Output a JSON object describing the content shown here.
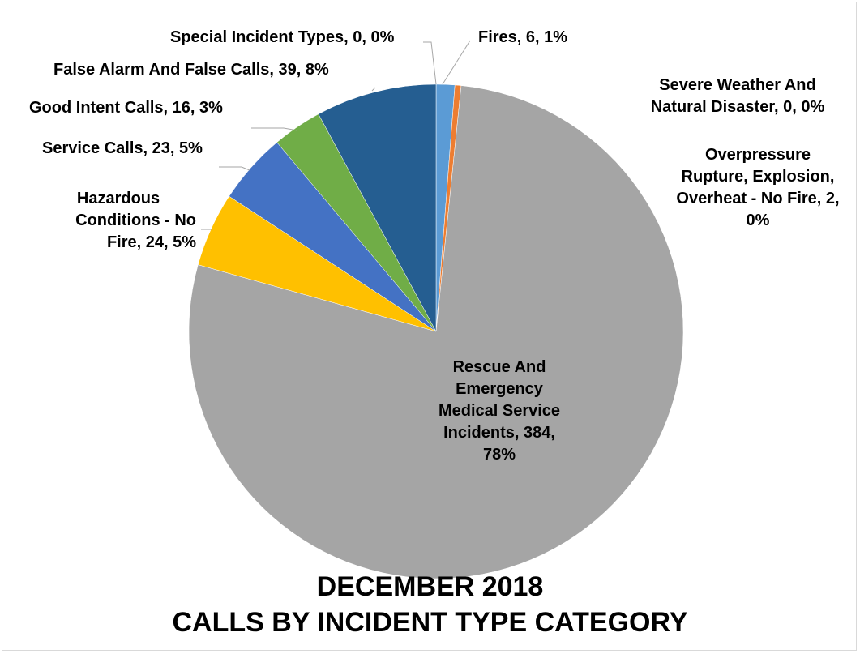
{
  "chart_data": {
    "type": "pie",
    "title_line1": "DECEMBER 2018",
    "title_line2": "CALLS BY INCIDENT TYPE CATEGORY",
    "start_angle_deg": 0,
    "direction": "clockwise",
    "slices": [
      {
        "name": "Fires",
        "value": 6,
        "percent": "1%",
        "color": "#5b9bd5"
      },
      {
        "name": "Overpressure Rupture, Explosion, Overheat - No Fire",
        "value": 2,
        "percent": "0%",
        "color": "#ed7d31"
      },
      {
        "name": "Rescue And Emergency Medical Service Incidents",
        "value": 384,
        "percent": "78%",
        "color": "#a5a5a5"
      },
      {
        "name": "Hazardous Conditions - No Fire",
        "value": 24,
        "percent": "5%",
        "color": "#ffc000"
      },
      {
        "name": "Service Calls",
        "value": 23,
        "percent": "5%",
        "color": "#4472c4"
      },
      {
        "name": "Good Intent Calls",
        "value": 16,
        "percent": "3%",
        "color": "#70ad47"
      },
      {
        "name": "False Alarm And False Calls",
        "value": 39,
        "percent": "8%",
        "color": "#255e91"
      },
      {
        "name": "Severe Weather And Natural Disaster",
        "value": 0,
        "percent": "0%",
        "color": "#9e480e"
      },
      {
        "name": "Special Incident Types",
        "value": 0,
        "percent": "0%",
        "color": "#636363"
      }
    ],
    "labels": {
      "fires": "Fires, 6, 1%",
      "severe": [
        "Severe Weather And",
        "Natural Disaster, 0, 0%"
      ],
      "overpressure": [
        "Overpressure",
        "Rupture, Explosion,",
        "Overheat - No Fire, 2,",
        "0%"
      ],
      "rescue": [
        "Rescue And",
        "Emergency",
        "Medical Service",
        "Incidents, 384,",
        "78%"
      ],
      "hazardous": [
        "Hazardous",
        "Conditions - No",
        "Fire, 24, 5%"
      ],
      "service": "Service Calls, 23, 5%",
      "good_intent": "Good Intent Calls, 16, 3%",
      "false_alarm": "False Alarm And False Calls, 39, 8%",
      "special": "Special Incident Types, 0, 0%"
    },
    "leader_line_color": "#a6a6a6"
  }
}
